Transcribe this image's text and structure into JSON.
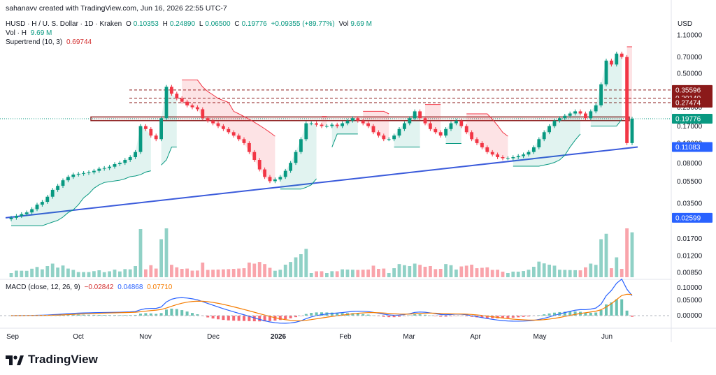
{
  "credit": "sahanavv created with TradingView.com, Jun 16, 2026 22:55 UTC-7",
  "symbol_line": {
    "name": "HUSD · H / U. S. Dollar · 1D · Kraken",
    "o_label": "O",
    "o": "0.10353",
    "h_label": "H",
    "h": "0.24890",
    "l_label": "L",
    "l": "0.06500",
    "c_label": "C",
    "c": "0.19776",
    "chg": "+0.09355 (+89.77%)",
    "vol_label": "Vol",
    "vol": "9.69 M"
  },
  "vol_line": {
    "label": "Vol · H",
    "value": "9.69 M"
  },
  "supertrend_line": {
    "label": "Supertrend (10, 3)",
    "value": "0.69744"
  },
  "macd_line": {
    "label": "MACD (close, 12, 26, 9)",
    "hist": "−0.02842",
    "macd": "0.04868",
    "signal": "0.07710"
  },
  "axis_currency": "USD",
  "logo_text": "TradingView",
  "colors": {
    "up": "#089981",
    "down": "#f23645",
    "trendline": "#3b5bdb",
    "macd": "#2962ff",
    "signal": "#f57c00",
    "resistance": "#8b1a1a"
  },
  "chart_data": {
    "type": "candlestick",
    "y_scale": "log",
    "y_ticks": [
      1.1,
      0.7,
      0.5,
      0.25,
      0.17,
      0.12,
      0.08,
      0.055,
      0.035,
      0.017,
      0.012,
      0.0085
    ],
    "y_tick_labels": [
      "1.10000",
      "0.70000",
      "0.50000",
      "0.25000",
      "0.17000",
      "0.12000",
      "0.08000",
      "0.05500",
      "0.03500",
      "0.01700",
      "0.01200",
      "0.00850"
    ],
    "x_ticks": [
      "Sep",
      "Oct",
      "Nov",
      "Dec",
      "2026",
      "Feb",
      "Mar",
      "Apr",
      "May",
      "Jun"
    ],
    "price_badges": [
      {
        "label": "0.35596",
        "value": 0.35596,
        "color": "#8b1a1a"
      },
      {
        "label": "0.30140",
        "value": 0.3014,
        "color": "#8b1a1a"
      },
      {
        "label": "0.27474",
        "value": 0.27474,
        "color": "#8b1a1a"
      },
      {
        "label": "0.19776",
        "value": 0.19776,
        "color": "#089981"
      },
      {
        "label": "0.11083",
        "value": 0.11083,
        "color": "#2962ff"
      },
      {
        "label": "0.02599",
        "value": 0.02599,
        "color": "#2962ff"
      }
    ],
    "resistance_dashed": [
      0.35596,
      0.3014,
      0.27474
    ],
    "resistance_zone": [
      0.19,
      0.205
    ],
    "trendline": [
      {
        "x": 0,
        "y": 0.026
      },
      {
        "x": 1,
        "y": 0.1108
      }
    ],
    "close_series": [
      0.026,
      0.027,
      0.028,
      0.029,
      0.031,
      0.034,
      0.036,
      0.04,
      0.046,
      0.05,
      0.056,
      0.06,
      0.063,
      0.064,
      0.065,
      0.066,
      0.068,
      0.071,
      0.072,
      0.074,
      0.078,
      0.08,
      0.085,
      0.09,
      0.1,
      0.17,
      0.16,
      0.14,
      0.13,
      0.2,
      0.38,
      0.33,
      0.3,
      0.28,
      0.26,
      0.25,
      0.24,
      0.2,
      0.19,
      0.18,
      0.17,
      0.16,
      0.15,
      0.14,
      0.13,
      0.12,
      0.1,
      0.085,
      0.07,
      0.06,
      0.055,
      0.057,
      0.06,
      0.068,
      0.08,
      0.1,
      0.13,
      0.18,
      0.18,
      0.175,
      0.17,
      0.17,
      0.175,
      0.17,
      0.18,
      0.19,
      0.2,
      0.19,
      0.18,
      0.17,
      0.15,
      0.14,
      0.13,
      0.13,
      0.14,
      0.16,
      0.18,
      0.2,
      0.23,
      0.2,
      0.18,
      0.16,
      0.15,
      0.14,
      0.16,
      0.18,
      0.19,
      0.17,
      0.15,
      0.13,
      0.12,
      0.11,
      0.1,
      0.095,
      0.09,
      0.088,
      0.088,
      0.09,
      0.092,
      0.095,
      0.1,
      0.11,
      0.13,
      0.15,
      0.17,
      0.19,
      0.2,
      0.21,
      0.22,
      0.23,
      0.22,
      0.2,
      0.23,
      0.26,
      0.4,
      0.65,
      0.6,
      0.75,
      0.7,
      0.12,
      0.19776
    ]
  }
}
